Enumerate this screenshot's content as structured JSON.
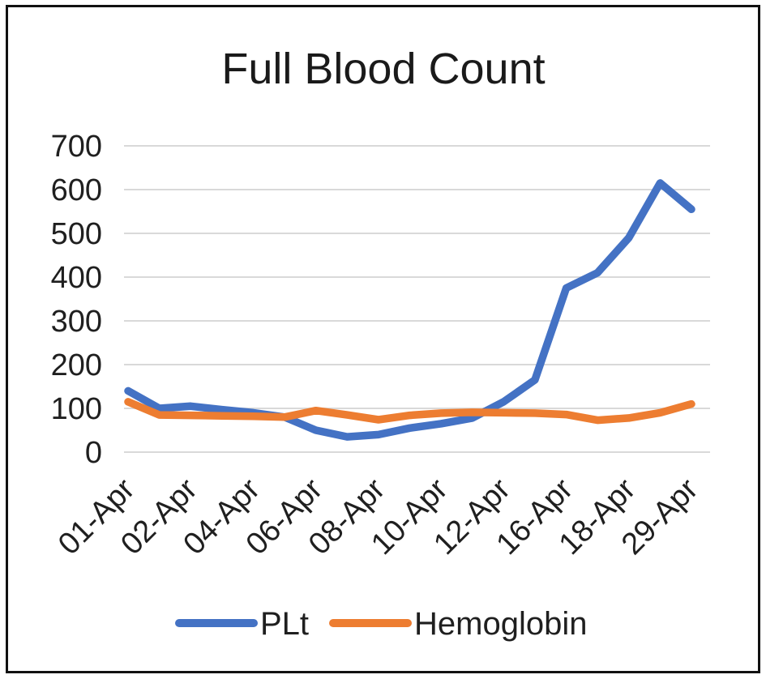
{
  "window": {
    "background_color": "#ffffff",
    "frame_border_color": "#111111"
  },
  "chart_data": {
    "type": "line",
    "title": "Full Blood Count",
    "xlabel": "",
    "ylabel": "",
    "ylim": [
      0,
      700
    ],
    "y_ticks": [
      0,
      100,
      200,
      300,
      400,
      500,
      600,
      700
    ],
    "y_tick_labels": [
      "0",
      "100",
      "200",
      "300",
      "400",
      "500",
      "600",
      "700"
    ],
    "x_tick_labels": [
      "01-Apr",
      "02-Apr",
      "04-Apr",
      "06-Apr",
      "08-Apr",
      "10-Apr",
      "12-Apr",
      "16-Apr",
      "18-Apr",
      "29-Apr"
    ],
    "x_tick_label_rotation_deg": -45,
    "points_per_series": 19,
    "x_tick_point_indices": [
      0,
      2,
      4,
      6,
      8,
      10,
      12,
      14,
      16,
      18
    ],
    "grid": "horizontal",
    "gridline_color": "#D9D9D9",
    "legend_position": "bottom",
    "series": [
      {
        "name": "PLt",
        "color": "#4472C4",
        "values": [
          140,
          100,
          105,
          97,
          90,
          80,
          50,
          35,
          40,
          55,
          65,
          78,
          115,
          165,
          375,
          410,
          490,
          615,
          555
        ]
      },
      {
        "name": "Hemoglobin",
        "color": "#ED7D31",
        "values": [
          115,
          85,
          84,
          83,
          82,
          80,
          95,
          85,
          74,
          84,
          89,
          91,
          90,
          89,
          86,
          73,
          78,
          90,
          110
        ]
      }
    ]
  }
}
